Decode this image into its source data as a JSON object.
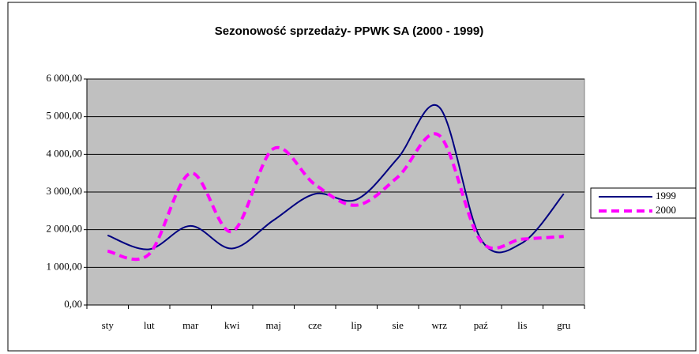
{
  "chart_data": {
    "type": "line",
    "title": "Sezonowość sprzedaży- PPWK SA (2000 - 1999)",
    "categories": [
      "sty",
      "lut",
      "mar",
      "kwi",
      "maj",
      "cze",
      "lip",
      "sie",
      "wrz",
      "paź",
      "lis",
      "gru"
    ],
    "series": [
      {
        "name": "1999",
        "color": "#000080",
        "dash": false,
        "values": [
          1850,
          1480,
          2100,
          1500,
          2250,
          2950,
          2800,
          3900,
          5250,
          1750,
          1650,
          2950
        ]
      },
      {
        "name": "2000",
        "color": "#ff00ff",
        "dash": true,
        "values": [
          1430,
          1350,
          3500,
          1950,
          4150,
          3200,
          2650,
          3400,
          4500,
          1700,
          1750,
          1820
        ]
      }
    ],
    "ylim": [
      0,
      6000
    ],
    "yticks": [
      {
        "value": 0,
        "label": "0,00"
      },
      {
        "value": 1000,
        "label": "1 000,00"
      },
      {
        "value": 2000,
        "label": "2 000,00"
      },
      {
        "value": 3000,
        "label": "3 000,00"
      },
      {
        "value": 4000,
        "label": "4 000,00"
      },
      {
        "value": 5000,
        "label": "5 000,00"
      },
      {
        "value": 6000,
        "label": "6 000,00"
      }
    ],
    "grid": true,
    "smooth": true,
    "legend": "right"
  }
}
